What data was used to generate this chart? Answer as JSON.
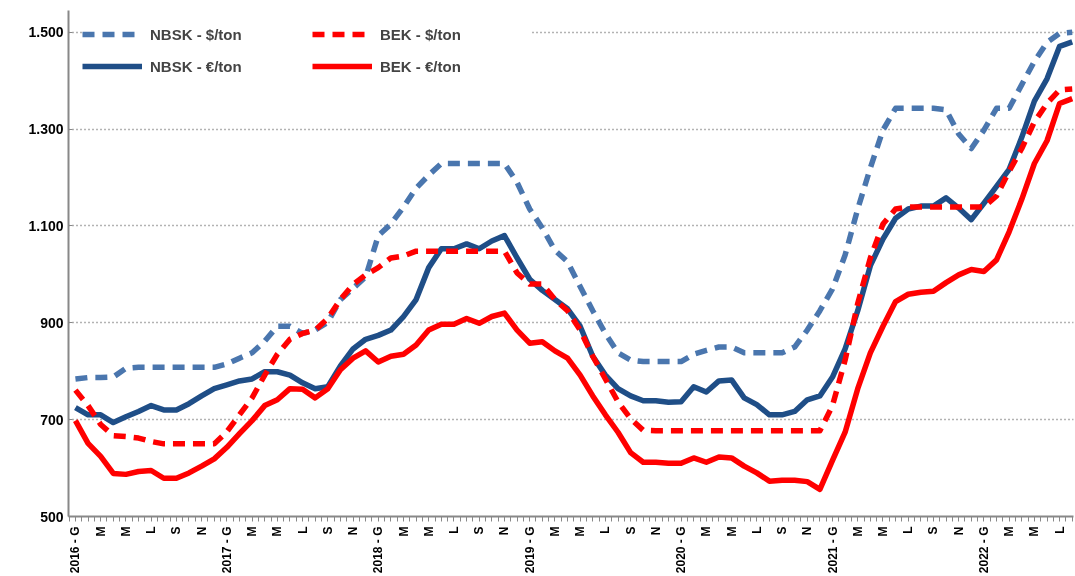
{
  "chart_data": {
    "type": "line",
    "categories": [
      "2016 - G",
      null,
      "M",
      null,
      "M",
      null,
      "L",
      null,
      "S",
      null,
      "N",
      null,
      "2017 - G",
      null,
      "M",
      null,
      "M",
      null,
      "L",
      null,
      "S",
      null,
      "N",
      null,
      "2018 - G",
      null,
      "M",
      null,
      "M",
      null,
      "L",
      null,
      "S",
      null,
      "N",
      null,
      "2019 - G",
      null,
      "M",
      null,
      "M",
      null,
      "L",
      null,
      "S",
      null,
      "N",
      null,
      "2020 - G",
      null,
      "M",
      null,
      "M",
      null,
      "L",
      null,
      "S",
      null,
      "N",
      null,
      "2021 - G",
      null,
      "M",
      null,
      "M",
      null,
      "L",
      null,
      "S",
      null,
      "N",
      null,
      "2022 - G",
      null,
      "M",
      null,
      "M",
      null,
      "L",
      null
    ],
    "series": [
      {
        "name": "NBSK - $/ton",
        "color": "#4a76ae",
        "line_style": "dashed",
        "values": [
          784,
          787,
          787,
          788,
          806,
          808,
          808,
          808,
          808,
          808,
          808,
          808,
          815,
          827,
          838,
          862,
          893,
          893,
          878,
          885,
          901,
          948,
          971,
          995,
          1080,
          1104,
          1139,
          1178,
          1205,
          1229,
          1229,
          1229,
          1229,
          1229,
          1229,
          1190,
          1135,
          1096,
          1050,
          1026,
          975,
          925,
          878,
          838,
          823,
          820,
          820,
          820,
          820,
          835,
          843,
          850,
          850,
          838,
          838,
          838,
          838,
          850,
          885,
          925,
          970,
          1040,
          1135,
          1220,
          1298,
          1343,
          1343,
          1343,
          1343,
          1340,
          1290,
          1260,
          1298,
          1343,
          1343,
          1392,
          1440,
          1479,
          1498,
          1500
        ]
      },
      {
        "name": "NBSK - €/ton",
        "color": "#1f4e87",
        "line_style": "solid",
        "values": [
          725,
          710,
          710,
          694,
          706,
          717,
          729,
          720,
          720,
          733,
          749,
          764,
          772,
          780,
          784,
          799,
          799,
          792,
          776,
          764,
          768,
          811,
          846,
          866,
          874,
          885,
          913,
          948,
          1014,
          1053,
          1053,
          1063,
          1053,
          1069,
          1080,
          1034,
          990,
          967,
          948,
          929,
          893,
          831,
          792,
          764,
          749,
          739,
          739,
          736,
          737,
          768,
          757,
          780,
          782,
          745,
          731,
          710,
          710,
          717,
          741,
          749,
          788,
          846,
          925,
          1018,
          1073,
          1116,
          1135,
          1141,
          1141,
          1158,
          1137,
          1113,
          1147,
          1182,
          1217,
          1283,
          1358,
          1404,
          1471,
          1480
        ]
      },
      {
        "name": "BEK - $/ton",
        "color": "#ff0000",
        "line_style": "dashed",
        "values": [
          761,
          729,
          690,
          667,
          665,
          662,
          655,
          650,
          650,
          650,
          650,
          650,
          675,
          710,
          745,
          792,
          835,
          866,
          878,
          885,
          909,
          948,
          979,
          999,
          1014,
          1034,
          1038,
          1048,
          1048,
          1048,
          1048,
          1048,
          1048,
          1048,
          1048,
          1003,
          980,
          980,
          948,
          925,
          885,
          831,
          784,
          737,
          702,
          678,
          677,
          677,
          677,
          677,
          677,
          677,
          677,
          677,
          677,
          677,
          677,
          677,
          677,
          677,
          729,
          823,
          940,
          1034,
          1104,
          1135,
          1139,
          1139,
          1139,
          1139,
          1139,
          1139,
          1139,
          1162,
          1213,
          1260,
          1315,
          1353,
          1381,
          1383
        ]
      },
      {
        "name": "BEK - €/ton",
        "color": "#ff0000",
        "line_style": "solid",
        "values": [
          698,
          651,
          624,
          589,
          587,
          593,
          595,
          579,
          579,
          590,
          604,
          619,
          643,
          671,
          698,
          729,
          741,
          764,
          763,
          745,
          764,
          803,
          827,
          842,
          819,
          831,
          835,
          854,
          885,
          897,
          897,
          909,
          899,
          913,
          920,
          885,
          858,
          861,
          842,
          827,
          792,
          749,
          710,
          674,
          632,
          612,
          612,
          610,
          610,
          621,
          612,
          623,
          621,
          604,
          590,
          573,
          575,
          575,
          572,
          556,
          616,
          674,
          764,
          838,
          893,
          944,
          959,
          963,
          965,
          983,
          999,
          1010,
          1006,
          1030,
          1088,
          1155,
          1229,
          1276,
          1353,
          1363
        ]
      }
    ],
    "ylim": [
      500,
      1545
    ],
    "yticks": [
      {
        "value": 500,
        "label": "500"
      },
      {
        "value": 700,
        "label": "700"
      },
      {
        "value": 900,
        "label": "900"
      },
      {
        "value": 1100,
        "label": "1.100"
      },
      {
        "value": 1300,
        "label": "1.300"
      },
      {
        "value": 1500,
        "label": "1.500"
      }
    ],
    "grid": "y",
    "legend": "top left",
    "marker": "none"
  }
}
